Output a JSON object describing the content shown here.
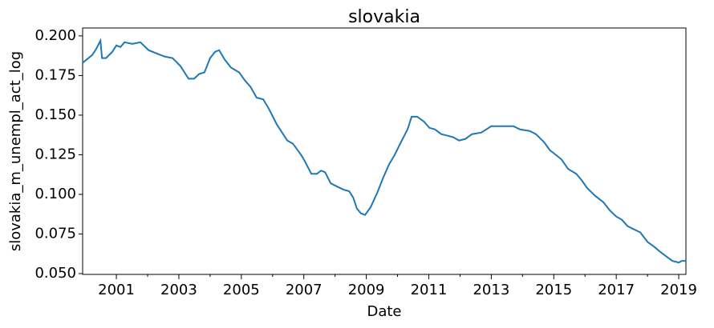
{
  "chart_data": {
    "type": "line",
    "title": "slovakia",
    "xlabel": "Date",
    "ylabel": "slovakia_m_unempl_act_log",
    "x": [
      1999.92,
      2000.23,
      2000.36,
      2000.49,
      2000.54,
      2000.67,
      2000.87,
      2001.0,
      2001.13,
      2001.26,
      2001.51,
      2001.77,
      2002.03,
      2002.28,
      2002.54,
      2002.8,
      2003.05,
      2003.31,
      2003.49,
      2003.65,
      2003.82,
      2004.0,
      2004.16,
      2004.29,
      2004.47,
      2004.67,
      2004.93,
      2005.11,
      2005.29,
      2005.49,
      2005.7,
      2005.88,
      2006.14,
      2006.47,
      2006.65,
      2006.91,
      2007.03,
      2007.24,
      2007.42,
      2007.55,
      2007.68,
      2007.86,
      2008.06,
      2008.27,
      2008.45,
      2008.58,
      2008.7,
      2008.83,
      2008.96,
      2009.14,
      2009.35,
      2009.55,
      2009.73,
      2009.91,
      2010.11,
      2010.32,
      2010.45,
      2010.63,
      2010.84,
      2011.02,
      2011.2,
      2011.4,
      2011.61,
      2011.79,
      2011.97,
      2012.17,
      2012.38,
      2012.68,
      2013.0,
      2013.33,
      2013.71,
      2013.92,
      2014.23,
      2014.43,
      2014.69,
      2014.87,
      2015.0,
      2015.25,
      2015.46,
      2015.72,
      2015.89,
      2016.07,
      2016.33,
      2016.59,
      2016.79,
      2017.0,
      2017.18,
      2017.36,
      2017.56,
      2017.77,
      2018.0,
      2018.21,
      2018.39,
      2018.59,
      2018.8,
      2019.0,
      2019.1,
      2019.23
    ],
    "series": [
      {
        "name": "slovakia",
        "color": "#1f77b4",
        "values": [
          0.183,
          0.188,
          0.192,
          0.197,
          0.186,
          0.186,
          0.19,
          0.194,
          0.193,
          0.196,
          0.195,
          0.196,
          0.191,
          0.189,
          0.187,
          0.186,
          0.181,
          0.173,
          0.173,
          0.176,
          0.177,
          0.186,
          0.19,
          0.191,
          0.185,
          0.18,
          0.177,
          0.172,
          0.168,
          0.161,
          0.16,
          0.154,
          0.144,
          0.134,
          0.132,
          0.125,
          0.121,
          0.113,
          0.113,
          0.115,
          0.114,
          0.107,
          0.105,
          0.103,
          0.102,
          0.098,
          0.091,
          0.088,
          0.087,
          0.092,
          0.101,
          0.111,
          0.119,
          0.125,
          0.133,
          0.141,
          0.149,
          0.149,
          0.146,
          0.142,
          0.141,
          0.138,
          0.137,
          0.136,
          0.134,
          0.135,
          0.138,
          0.139,
          0.143,
          0.143,
          0.143,
          0.141,
          0.14,
          0.138,
          0.133,
          0.128,
          0.126,
          0.122,
          0.116,
          0.113,
          0.109,
          0.104,
          0.099,
          0.095,
          0.09,
          0.086,
          0.084,
          0.08,
          0.078,
          0.076,
          0.07,
          0.067,
          0.064,
          0.061,
          0.058,
          0.057,
          0.058,
          0.058
        ]
      }
    ],
    "xlim": [
      1999.92,
      2019.23
    ],
    "xticks": [
      2001,
      2003,
      2005,
      2007,
      2009,
      2011,
      2013,
      2015,
      2017,
      2019
    ],
    "xminorticks": [
      2002,
      2004,
      2006,
      2008,
      2010,
      2012,
      2014,
      2016,
      2018
    ],
    "ylim": [
      0.0495,
      0.205
    ],
    "yticks": [
      {
        "value": 0.05,
        "label": "0.050"
      },
      {
        "value": 0.075,
        "label": "0.075"
      },
      {
        "value": 0.1,
        "label": "0.100"
      },
      {
        "value": 0.125,
        "label": "0.125"
      },
      {
        "value": 0.15,
        "label": "0.150"
      },
      {
        "value": 0.175,
        "label": "0.175"
      },
      {
        "value": 0.2,
        "label": "0.200"
      }
    ]
  }
}
